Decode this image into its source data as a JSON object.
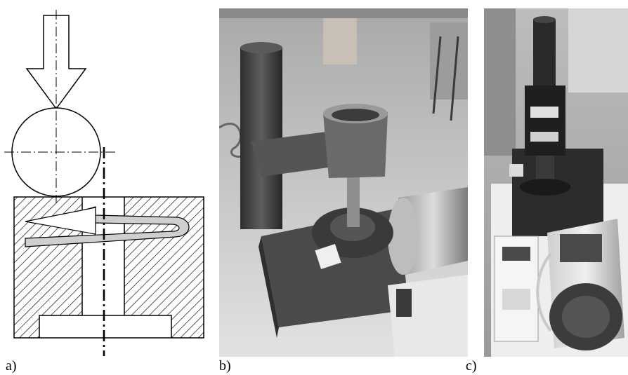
{
  "panels": [
    {
      "id": "a",
      "label": "a)"
    },
    {
      "id": "b",
      "label": "b)"
    },
    {
      "id": "c",
      "label": "c)"
    }
  ]
}
